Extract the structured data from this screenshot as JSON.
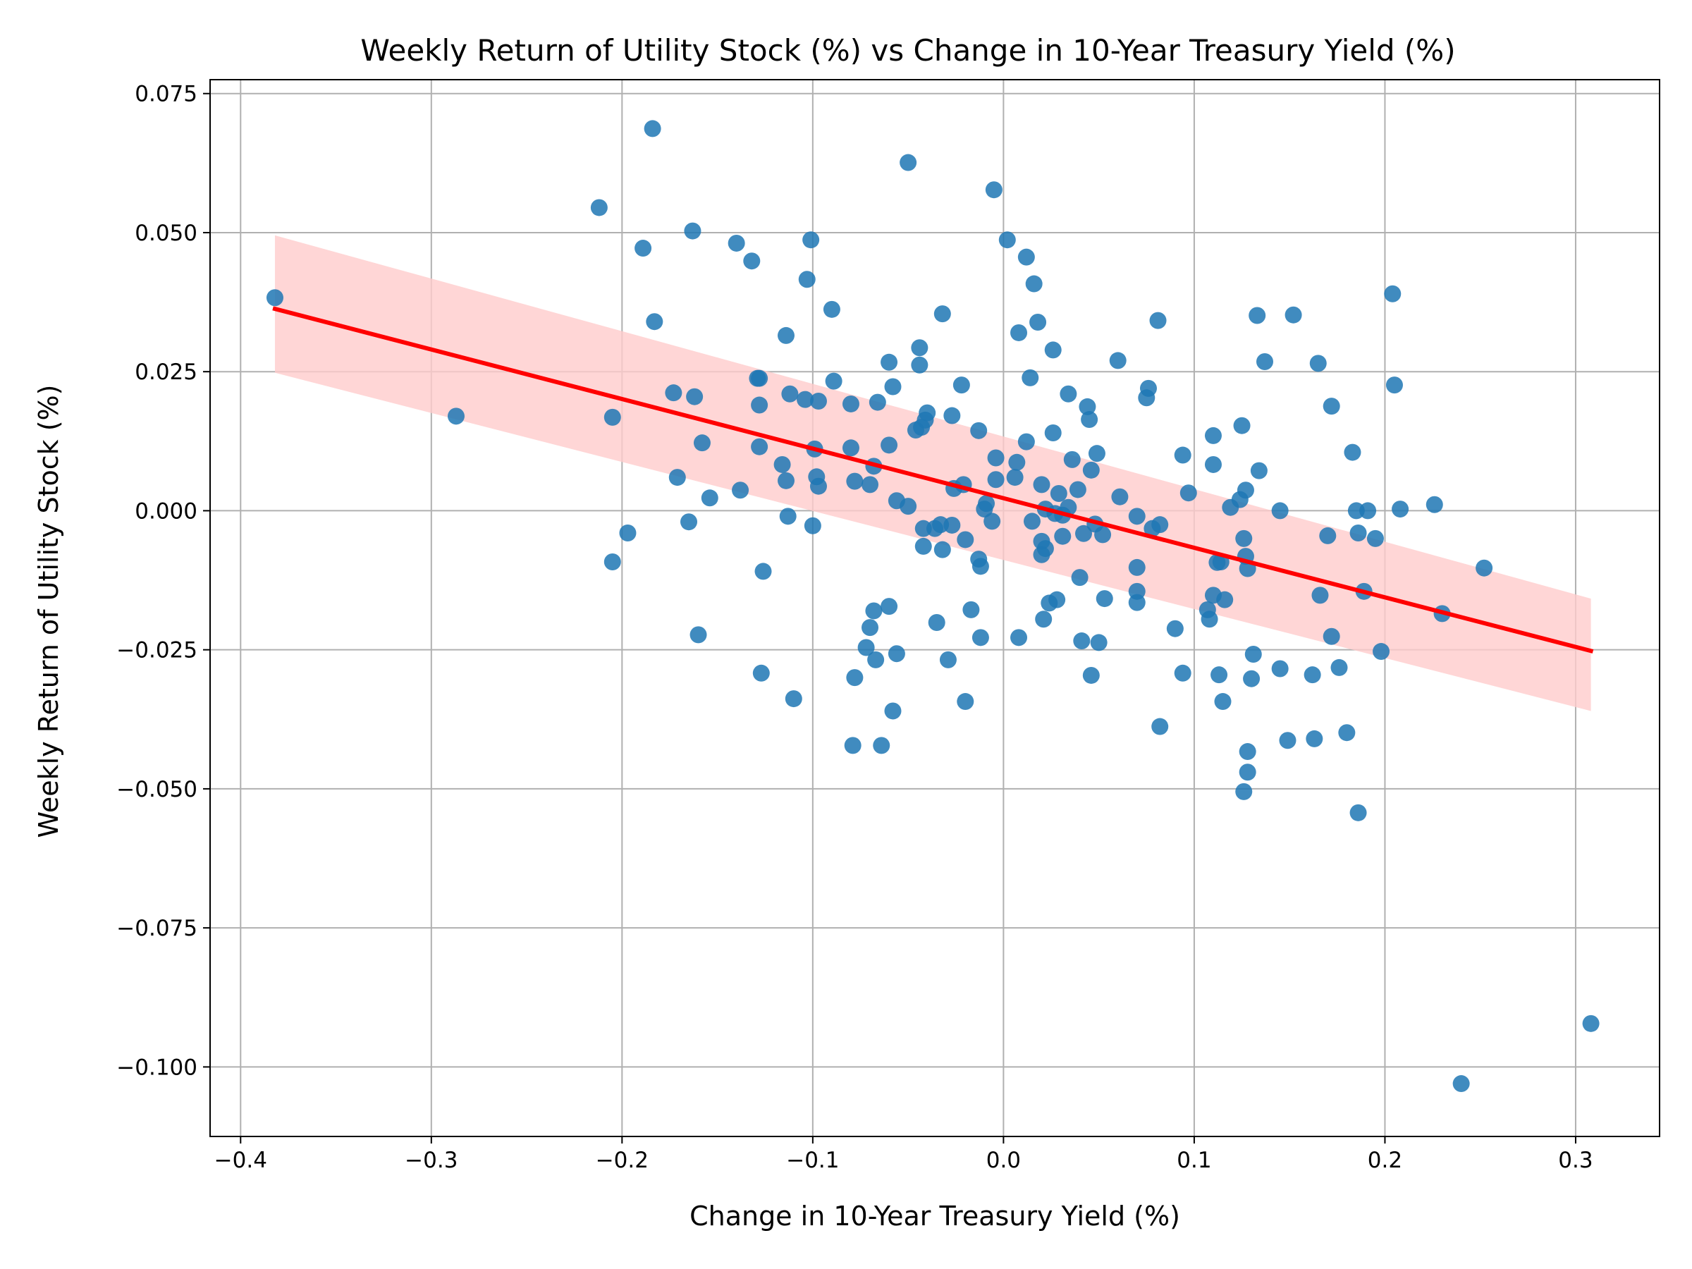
{
  "chart_data": {
    "type": "scatter",
    "title": "Weekly Return of Utility Stock (%) vs Change in 10-Year Treasury Yield (%)",
    "xlabel": "Change in 10-Year Treasury Yield (%)",
    "ylabel": "Weekly Return of Utility Stock (%)",
    "xlim": [
      -0.416,
      0.344
    ],
    "ylim": [
      -0.1125,
      0.0775
    ],
    "x_ticks": [
      -0.4,
      -0.3,
      -0.2,
      -0.1,
      0.0,
      0.1,
      0.2,
      0.3
    ],
    "x_tick_labels": [
      "−0.4",
      "−0.3",
      "−0.2",
      "−0.1",
      "0.0",
      "0.1",
      "0.2",
      "0.3"
    ],
    "y_ticks": [
      0.075,
      0.05,
      0.025,
      0.0,
      -0.025,
      -0.05,
      -0.075,
      -0.1
    ],
    "y_tick_labels": [
      "0.075",
      "0.050",
      "0.025",
      "0.000",
      "−0.025",
      "−0.050",
      "−0.075",
      "−0.100"
    ],
    "grid": true,
    "colors": {
      "points": "#1f77b4",
      "regression_line": "#ff0000",
      "confidence_band": "#ffcccc"
    },
    "regression": {
      "x_start": -0.382,
      "y_start": 0.0363,
      "x_end": 0.308,
      "y_end": -0.0252,
      "ci_lower_start": 0.0248,
      "ci_upper_start": 0.0495,
      "ci_lower_end": -0.036,
      "ci_upper_end": -0.0158
    },
    "points": [
      [
        -0.382,
        0.0383
      ],
      [
        -0.287,
        0.017
      ],
      [
        -0.212,
        0.0545
      ],
      [
        -0.205,
        0.0168
      ],
      [
        -0.205,
        -0.0092
      ],
      [
        -0.197,
        -0.004
      ],
      [
        -0.189,
        0.0472
      ],
      [
        -0.184,
        0.0687
      ],
      [
        -0.183,
        0.034
      ],
      [
        -0.173,
        0.0212
      ],
      [
        -0.171,
        0.006
      ],
      [
        -0.165,
        -0.002
      ],
      [
        -0.163,
        0.0503
      ],
      [
        -0.162,
        0.0205
      ],
      [
        -0.16,
        -0.0223
      ],
      [
        -0.158,
        0.0122
      ],
      [
        -0.154,
        0.0023
      ],
      [
        -0.14,
        0.0481
      ],
      [
        -0.138,
        0.0037
      ],
      [
        -0.132,
        0.0449
      ],
      [
        -0.129,
        0.0238
      ],
      [
        -0.128,
        0.019
      ],
      [
        -0.128,
        0.0238
      ],
      [
        -0.128,
        0.0115
      ],
      [
        -0.127,
        -0.0292
      ],
      [
        -0.126,
        -0.0109
      ],
      [
        -0.116,
        0.0083
      ],
      [
        -0.114,
        0.0315
      ],
      [
        -0.114,
        0.0054
      ],
      [
        -0.113,
        -0.001
      ],
      [
        -0.112,
        0.021
      ],
      [
        -0.11,
        -0.0338
      ],
      [
        -0.104,
        0.02
      ],
      [
        -0.103,
        0.0416
      ],
      [
        -0.101,
        0.0487
      ],
      [
        -0.1,
        -0.0027
      ],
      [
        -0.099,
        0.0111
      ],
      [
        -0.098,
        0.0061
      ],
      [
        -0.097,
        0.0044
      ],
      [
        -0.097,
        0.0197
      ],
      [
        -0.09,
        0.0362
      ],
      [
        -0.089,
        0.0233
      ],
      [
        -0.08,
        0.0192
      ],
      [
        -0.08,
        0.0113
      ],
      [
        -0.079,
        -0.0422
      ],
      [
        -0.078,
        0.0053
      ],
      [
        -0.078,
        -0.03
      ],
      [
        -0.072,
        -0.0246
      ],
      [
        -0.07,
        0.0047
      ],
      [
        -0.07,
        -0.021
      ],
      [
        -0.068,
        0.008
      ],
      [
        -0.068,
        -0.018
      ],
      [
        -0.067,
        -0.0268
      ],
      [
        -0.066,
        0.0195
      ],
      [
        -0.064,
        -0.0422
      ],
      [
        -0.06,
        0.0267
      ],
      [
        -0.06,
        0.0118
      ],
      [
        -0.06,
        -0.0172
      ],
      [
        -0.058,
        0.0223
      ],
      [
        -0.058,
        -0.036
      ],
      [
        -0.056,
        0.0018
      ],
      [
        -0.056,
        -0.0257
      ],
      [
        -0.05,
        0.0626
      ],
      [
        -0.05,
        0.0008
      ],
      [
        -0.046,
        0.0145
      ],
      [
        -0.044,
        0.0262
      ],
      [
        -0.044,
        0.0293
      ],
      [
        -0.043,
        0.015
      ],
      [
        -0.042,
        -0.0032
      ],
      [
        -0.042,
        -0.0064
      ],
      [
        -0.041,
        0.0163
      ],
      [
        -0.04,
        0.0176
      ],
      [
        -0.036,
        -0.0032
      ],
      [
        -0.035,
        -0.0201
      ],
      [
        -0.033,
        -0.0025
      ],
      [
        -0.032,
        -0.007
      ],
      [
        -0.032,
        0.0354
      ],
      [
        -0.029,
        -0.0268
      ],
      [
        -0.027,
        -0.0026
      ],
      [
        -0.027,
        0.0171
      ],
      [
        -0.026,
        0.004
      ],
      [
        -0.022,
        0.0226
      ],
      [
        -0.021,
        0.0047
      ],
      [
        -0.02,
        -0.0052
      ],
      [
        -0.02,
        -0.0343
      ],
      [
        -0.017,
        -0.0178
      ],
      [
        -0.013,
        0.0144
      ],
      [
        -0.013,
        -0.0087
      ],
      [
        -0.012,
        -0.01
      ],
      [
        -0.012,
        -0.0228
      ],
      [
        -0.01,
        0.0003
      ],
      [
        -0.009,
        0.0013
      ],
      [
        -0.006,
        -0.0019
      ],
      [
        -0.005,
        0.0577
      ],
      [
        -0.004,
        0.0056
      ],
      [
        -0.004,
        0.0095
      ],
      [
        0.002,
        0.0487
      ],
      [
        0.006,
        0.006
      ],
      [
        0.007,
        0.0087
      ],
      [
        0.008,
        0.032
      ],
      [
        0.008,
        -0.0228
      ],
      [
        0.012,
        0.0456
      ],
      [
        0.012,
        0.0124
      ],
      [
        0.014,
        0.0239
      ],
      [
        0.015,
        -0.0019
      ],
      [
        0.016,
        0.0408
      ],
      [
        0.018,
        0.0339
      ],
      [
        0.02,
        0.0047
      ],
      [
        0.02,
        -0.0055
      ],
      [
        0.02,
        -0.0079
      ],
      [
        0.021,
        -0.0195
      ],
      [
        0.022,
        0.0003
      ],
      [
        0.022,
        -0.0068
      ],
      [
        0.024,
        -0.0166
      ],
      [
        0.026,
        0.0289
      ],
      [
        0.026,
        0.014
      ],
      [
        0.027,
        -0.0005
      ],
      [
        0.028,
        -0.016
      ],
      [
        0.029,
        0.0031
      ],
      [
        0.031,
        -0.0046
      ],
      [
        0.031,
        -0.0008
      ],
      [
        0.034,
        0.021
      ],
      [
        0.034,
        0.0006
      ],
      [
        0.036,
        0.0092
      ],
      [
        0.039,
        0.0038
      ],
      [
        0.04,
        -0.012
      ],
      [
        0.041,
        -0.0234
      ],
      [
        0.042,
        -0.0041
      ],
      [
        0.044,
        0.0187
      ],
      [
        0.045,
        0.0164
      ],
      [
        0.046,
        0.0073
      ],
      [
        0.046,
        -0.0296
      ],
      [
        0.048,
        -0.0024
      ],
      [
        0.049,
        0.0103
      ],
      [
        0.05,
        -0.0237
      ],
      [
        0.052,
        -0.0043
      ],
      [
        0.053,
        -0.0158
      ],
      [
        0.061,
        0.0025
      ],
      [
        0.06,
        0.027
      ],
      [
        0.07,
        -0.001
      ],
      [
        0.07,
        -0.0102
      ],
      [
        0.07,
        -0.0145
      ],
      [
        0.07,
        -0.0165
      ],
      [
        0.075,
        0.0203
      ],
      [
        0.076,
        0.022
      ],
      [
        0.078,
        -0.0032
      ],
      [
        0.081,
        0.0342
      ],
      [
        0.082,
        -0.0025
      ],
      [
        0.082,
        -0.0388
      ],
      [
        0.09,
        -0.0212
      ],
      [
        0.094,
        -0.0292
      ],
      [
        0.094,
        0.01
      ],
      [
        0.097,
        0.0032
      ],
      [
        0.107,
        -0.0178
      ],
      [
        0.108,
        -0.0195
      ],
      [
        0.11,
        -0.0152
      ],
      [
        0.11,
        0.0135
      ],
      [
        0.11,
        0.0083
      ],
      [
        0.112,
        -0.0093
      ],
      [
        0.113,
        -0.0295
      ],
      [
        0.114,
        -0.0092
      ],
      [
        0.115,
        -0.0343
      ],
      [
        0.116,
        -0.016
      ],
      [
        0.119,
        0.0006
      ],
      [
        0.124,
        0.002
      ],
      [
        0.125,
        0.0153
      ],
      [
        0.126,
        -0.005
      ],
      [
        0.126,
        -0.0505
      ],
      [
        0.127,
        0.0037
      ],
      [
        0.127,
        -0.0082
      ],
      [
        0.128,
        -0.0104
      ],
      [
        0.128,
        -0.0433
      ],
      [
        0.128,
        -0.047
      ],
      [
        0.13,
        -0.0302
      ],
      [
        0.131,
        -0.0258
      ],
      [
        0.133,
        0.0351
      ],
      [
        0.134,
        0.0072
      ],
      [
        0.137,
        0.0268
      ],
      [
        0.145,
        0.0
      ],
      [
        0.145,
        -0.0284
      ],
      [
        0.149,
        -0.0413
      ],
      [
        0.152,
        0.0352
      ],
      [
        0.162,
        -0.0295
      ],
      [
        0.163,
        -0.041
      ],
      [
        0.165,
        0.0265
      ],
      [
        0.166,
        -0.0152
      ],
      [
        0.17,
        -0.0045
      ],
      [
        0.172,
        0.0188
      ],
      [
        0.172,
        -0.0226
      ],
      [
        0.176,
        -0.0282
      ],
      [
        0.18,
        -0.0399
      ],
      [
        0.183,
        0.0105
      ],
      [
        0.185,
        0.0
      ],
      [
        0.186,
        -0.004
      ],
      [
        0.186,
        -0.0543
      ],
      [
        0.189,
        -0.0145
      ],
      [
        0.191,
        0.0
      ],
      [
        0.195,
        -0.005
      ],
      [
        0.198,
        -0.0253
      ],
      [
        0.204,
        0.039
      ],
      [
        0.205,
        0.0226
      ],
      [
        0.208,
        0.0003
      ],
      [
        0.226,
        0.0011
      ],
      [
        0.23,
        -0.0185
      ],
      [
        0.24,
        -0.103
      ],
      [
        0.252,
        -0.0103
      ],
      [
        0.308,
        -0.0922
      ]
    ]
  }
}
